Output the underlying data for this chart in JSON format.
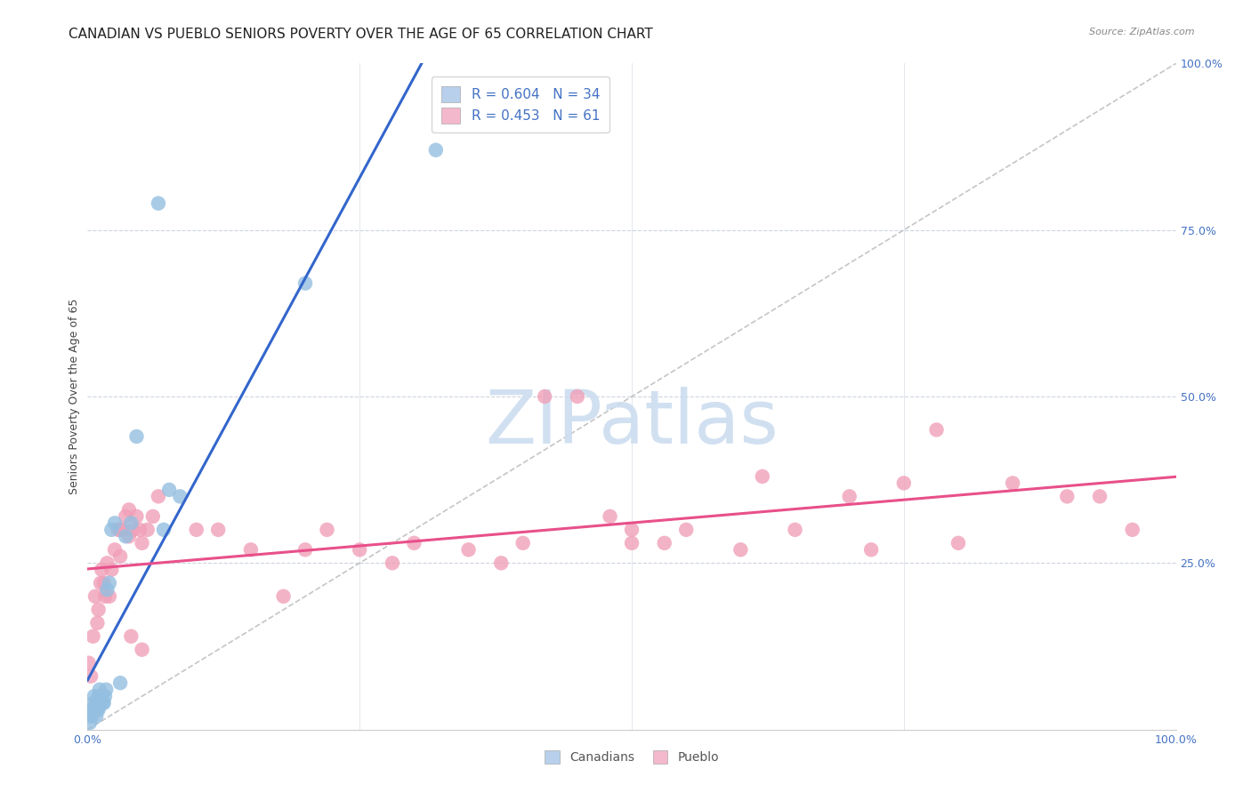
{
  "title": "CANADIAN VS PUEBLO SENIORS POVERTY OVER THE AGE OF 65 CORRELATION CHART",
  "source": "Source: ZipAtlas.com",
  "ylabel": "Seniors Poverty Over the Age of 65",
  "background_color": "#ffffff",
  "canadians": {
    "x": [
      0.002,
      0.003,
      0.003,
      0.004,
      0.005,
      0.005,
      0.006,
      0.007,
      0.008,
      0.008,
      0.009,
      0.01,
      0.01,
      0.011,
      0.012,
      0.013,
      0.014,
      0.015,
      0.016,
      0.017,
      0.018,
      0.02,
      0.022,
      0.025,
      0.03,
      0.035,
      0.04,
      0.045,
      0.065,
      0.07,
      0.075,
      0.085,
      0.2,
      0.32
    ],
    "y": [
      0.01,
      0.02,
      0.03,
      0.02,
      0.03,
      0.04,
      0.05,
      0.03,
      0.02,
      0.04,
      0.03,
      0.03,
      0.05,
      0.06,
      0.04,
      0.05,
      0.04,
      0.04,
      0.05,
      0.06,
      0.21,
      0.22,
      0.3,
      0.31,
      0.07,
      0.29,
      0.31,
      0.44,
      0.79,
      0.3,
      0.36,
      0.35,
      0.67,
      0.87
    ],
    "R": 0.604,
    "N": 34,
    "color": "#94bfe0",
    "line_color": "#3366cc",
    "legend_facecolor": "#b8d0ec"
  },
  "pueblo": {
    "x": [
      0.001,
      0.003,
      0.005,
      0.007,
      0.009,
      0.01,
      0.012,
      0.013,
      0.015,
      0.016,
      0.018,
      0.02,
      0.022,
      0.025,
      0.028,
      0.03,
      0.03,
      0.032,
      0.035,
      0.038,
      0.038,
      0.04,
      0.042,
      0.045,
      0.048,
      0.05,
      0.05,
      0.055,
      0.06,
      0.065,
      0.1,
      0.12,
      0.15,
      0.18,
      0.2,
      0.22,
      0.25,
      0.28,
      0.3,
      0.35,
      0.38,
      0.4,
      0.42,
      0.45,
      0.48,
      0.5,
      0.5,
      0.53,
      0.55,
      0.6,
      0.62,
      0.65,
      0.7,
      0.72,
      0.75,
      0.78,
      0.8,
      0.85,
      0.9,
      0.93,
      0.96
    ],
    "y": [
      0.1,
      0.08,
      0.14,
      0.2,
      0.16,
      0.18,
      0.22,
      0.24,
      0.22,
      0.2,
      0.25,
      0.2,
      0.24,
      0.27,
      0.3,
      0.26,
      0.3,
      0.3,
      0.32,
      0.29,
      0.33,
      0.14,
      0.3,
      0.32,
      0.3,
      0.12,
      0.28,
      0.3,
      0.32,
      0.35,
      0.3,
      0.3,
      0.27,
      0.2,
      0.27,
      0.3,
      0.27,
      0.25,
      0.28,
      0.27,
      0.25,
      0.28,
      0.5,
      0.5,
      0.32,
      0.28,
      0.3,
      0.28,
      0.3,
      0.27,
      0.38,
      0.3,
      0.35,
      0.27,
      0.37,
      0.45,
      0.28,
      0.37,
      0.35,
      0.35,
      0.3
    ],
    "R": 0.453,
    "N": 61,
    "color": "#f0a0b8",
    "line_color": "#e8508a",
    "legend_facecolor": "#f4b8cc"
  },
  "xlim": [
    0.0,
    1.0
  ],
  "ylim": [
    0.0,
    1.0
  ],
  "grid_ticks": [
    0.25,
    0.5,
    0.75
  ],
  "xtick_positions": [
    0.0,
    0.25,
    0.5,
    0.75,
    1.0
  ],
  "xtick_labels": [
    "0.0%",
    "",
    "",
    "",
    "100.0%"
  ],
  "ytick_positions": [
    0.25,
    0.5,
    0.75,
    1.0
  ],
  "ytick_labels": [
    "25.0%",
    "50.0%",
    "75.0%",
    "100.0%"
  ],
  "diagonal_color": "#bbbbbb",
  "tick_color": "#4472c4",
  "title_fontsize": 11,
  "axis_label_fontsize": 9,
  "tick_fontsize": 9
}
